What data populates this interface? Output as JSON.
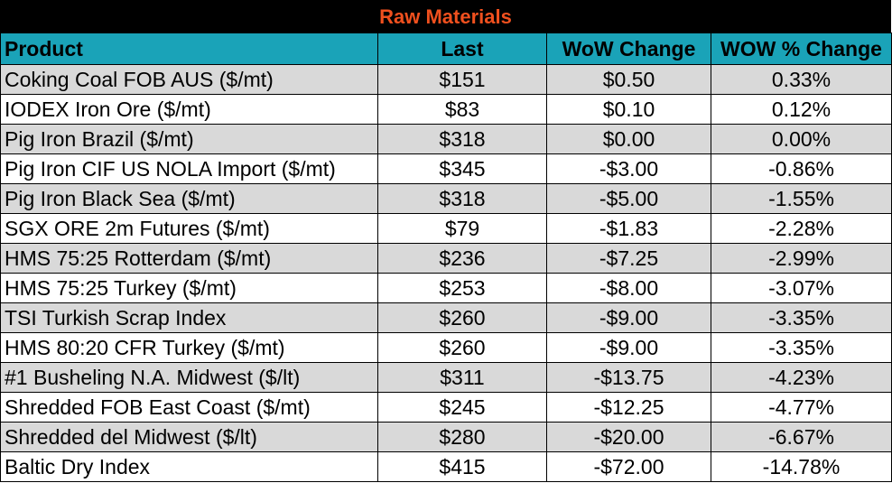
{
  "title": "Raw Materials",
  "colors": {
    "title_bg": "#000000",
    "title_text": "#f0501e",
    "header_bg": "#1aa3b8",
    "row_shade": "#d9d9d9",
    "row_plain": "#ffffff"
  },
  "headers": [
    "Product",
    "Last",
    "WoW Change",
    "WOW % Change"
  ],
  "rows": [
    [
      "Coking Coal FOB AUS ($/mt)",
      "$151",
      "$0.50",
      "0.33%"
    ],
    [
      "IODEX  Iron Ore ($/mt)",
      "$83",
      "$0.10",
      "0.12%"
    ],
    [
      "Pig Iron Brazil ($/mt)",
      "$318",
      "$0.00",
      "0.00%"
    ],
    [
      "Pig Iron CIF US NOLA Import ($/mt)",
      "$345",
      "-$3.00",
      "-0.86%"
    ],
    [
      "Pig Iron Black Sea ($/mt)",
      "$318",
      "-$5.00",
      "-1.55%"
    ],
    [
      "SGX ORE 2m Futures ($/mt)",
      "$79",
      "-$1.83",
      "-2.28%"
    ],
    [
      "HMS 75:25 Rotterdam ($/mt)",
      "$236",
      "-$7.25",
      "-2.99%"
    ],
    [
      "HMS 75:25 Turkey ($/mt)",
      "$253",
      "-$8.00",
      "-3.07%"
    ],
    [
      "TSI Turkish Scrap Index",
      "$260",
      "-$9.00",
      "-3.35%"
    ],
    [
      "HMS 80:20 CFR Turkey ($/mt)",
      "$260",
      "-$9.00",
      "-3.35%"
    ],
    [
      "#1 Busheling N.A. Midwest ($/lt)",
      "$311",
      "-$13.75",
      "-4.23%"
    ],
    [
      "Shredded FOB East Coast ($/mt)",
      "$245",
      "-$12.25",
      "-4.77%"
    ],
    [
      "Shredded del  Midwest ($/lt)",
      "$280",
      "-$20.00",
      "-6.67%"
    ],
    [
      "Baltic Dry Index",
      "$415",
      "-$72.00",
      "-14.78%"
    ]
  ]
}
